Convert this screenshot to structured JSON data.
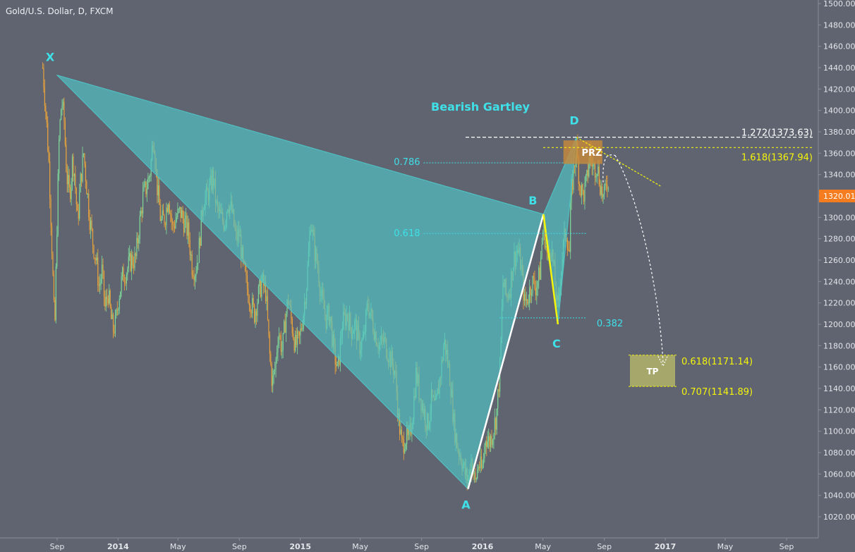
{
  "chart_title": "Gold/U.S. Dollar, D, FXCM",
  "chart_data": {
    "type": "candlestick",
    "title": "Gold/U.S. Dollar, D, FXCM",
    "symbol": "Gold/U.S. Dollar",
    "interval": "D",
    "source": "FXCM",
    "ylim": [
      1010,
      1500
    ],
    "y_ticks": [
      1020,
      1040,
      1060,
      1080,
      1100,
      1120,
      1140,
      1160,
      1180,
      1200,
      1220,
      1240,
      1260,
      1280,
      1300,
      1320,
      1340,
      1360,
      1380,
      1400,
      1420,
      1440,
      1460,
      1480,
      1500
    ],
    "y_tick_labels": [
      "1020.00",
      "1040.00",
      "1060.00",
      "1080.00",
      "1100.00",
      "1120.00",
      "1140.00",
      "1160.00",
      "1180.00",
      "1200.00",
      "1220.00",
      "1240.00",
      "1260.00",
      "1280.00",
      "1300.00",
      "1320.00",
      "1340.00",
      "1360.00",
      "1380.00",
      "1400.00",
      "1420.00",
      "1440.00",
      "1460.00",
      "1480.00",
      "1500.00"
    ],
    "x_range": [
      "2013-08-01",
      "2017-10-01"
    ],
    "x_ticks": [
      {
        "label": "Sep",
        "date": "2013-09-01"
      },
      {
        "label": "2014",
        "date": "2014-01-01"
      },
      {
        "label": "May",
        "date": "2014-05-01"
      },
      {
        "label": "Sep",
        "date": "2014-09-01"
      },
      {
        "label": "2015",
        "date": "2015-01-01"
      },
      {
        "label": "May",
        "date": "2015-05-01"
      },
      {
        "label": "Sep",
        "date": "2015-09-01"
      },
      {
        "label": "2016",
        "date": "2016-01-01"
      },
      {
        "label": "May",
        "date": "2016-05-01"
      },
      {
        "label": "Sep",
        "date": "2016-09-01"
      },
      {
        "label": "2017",
        "date": "2017-01-01"
      },
      {
        "label": "May",
        "date": "2017-05-01"
      },
      {
        "label": "Sep",
        "date": "2017-09-01"
      }
    ],
    "current_price": {
      "label": "1320.01",
      "value": 1320.01
    },
    "price_path": [
      {
        "date": "2013-08-03",
        "value": 1440
      },
      {
        "date": "2013-08-10",
        "value": 1395
      },
      {
        "date": "2013-08-16",
        "value": 1345
      },
      {
        "date": "2013-08-22",
        "value": 1265
      },
      {
        "date": "2013-08-27",
        "value": 1190
      },
      {
        "date": "2013-09-01",
        "value": 1300
      },
      {
        "date": "2013-09-05",
        "value": 1375
      },
      {
        "date": "2013-09-10",
        "value": 1410
      },
      {
        "date": "2013-09-15",
        "value": 1390
      },
      {
        "date": "2013-09-20",
        "value": 1340
      },
      {
        "date": "2013-09-26",
        "value": 1320
      },
      {
        "date": "2013-10-02",
        "value": 1355
      },
      {
        "date": "2013-10-06",
        "value": 1340
      },
      {
        "date": "2013-10-12",
        "value": 1295
      },
      {
        "date": "2013-10-18",
        "value": 1335
      },
      {
        "date": "2013-10-24",
        "value": 1360
      },
      {
        "date": "2013-10-30",
        "value": 1330
      },
      {
        "date": "2013-11-05",
        "value": 1300
      },
      {
        "date": "2013-11-12",
        "value": 1275
      },
      {
        "date": "2013-11-18",
        "value": 1260
      },
      {
        "date": "2013-11-24",
        "value": 1235
      },
      {
        "date": "2013-11-30",
        "value": 1250
      },
      {
        "date": "2013-12-06",
        "value": 1215
      },
      {
        "date": "2013-12-12",
        "value": 1230
      },
      {
        "date": "2013-12-18",
        "value": 1205
      },
      {
        "date": "2013-12-22",
        "value": 1195
      },
      {
        "date": "2013-12-27",
        "value": 1200
      },
      {
        "date": "2014-01-02",
        "value": 1225
      },
      {
        "date": "2014-01-10",
        "value": 1245
      },
      {
        "date": "2014-01-18",
        "value": 1250
      },
      {
        "date": "2014-01-27",
        "value": 1260
      },
      {
        "date": "2014-02-05",
        "value": 1260
      },
      {
        "date": "2014-02-12",
        "value": 1290
      },
      {
        "date": "2014-02-20",
        "value": 1320
      },
      {
        "date": "2014-02-28",
        "value": 1330
      },
      {
        "date": "2014-03-07",
        "value": 1345
      },
      {
        "date": "2014-03-13",
        "value": 1380
      },
      {
        "date": "2014-03-20",
        "value": 1330
      },
      {
        "date": "2014-03-28",
        "value": 1295
      },
      {
        "date": "2014-04-05",
        "value": 1300
      },
      {
        "date": "2014-04-12",
        "value": 1320
      },
      {
        "date": "2014-04-20",
        "value": 1290
      },
      {
        "date": "2014-04-28",
        "value": 1300
      },
      {
        "date": "2014-05-06",
        "value": 1305
      },
      {
        "date": "2014-05-14",
        "value": 1295
      },
      {
        "date": "2014-05-22",
        "value": 1285
      },
      {
        "date": "2014-05-29",
        "value": 1255
      },
      {
        "date": "2014-06-05",
        "value": 1250
      },
      {
        "date": "2014-06-12",
        "value": 1270
      },
      {
        "date": "2014-06-20",
        "value": 1315
      },
      {
        "date": "2014-06-28",
        "value": 1320
      },
      {
        "date": "2014-07-06",
        "value": 1330
      },
      {
        "date": "2014-07-10",
        "value": 1340
      },
      {
        "date": "2014-07-17",
        "value": 1310
      },
      {
        "date": "2014-07-25",
        "value": 1300
      },
      {
        "date": "2014-08-02",
        "value": 1295
      },
      {
        "date": "2014-08-09",
        "value": 1315
      },
      {
        "date": "2014-08-17",
        "value": 1305
      },
      {
        "date": "2014-08-25",
        "value": 1280
      },
      {
        "date": "2014-09-01",
        "value": 1285
      },
      {
        "date": "2014-09-08",
        "value": 1255
      },
      {
        "date": "2014-09-16",
        "value": 1235
      },
      {
        "date": "2014-09-24",
        "value": 1220
      },
      {
        "date": "2014-10-01",
        "value": 1210
      },
      {
        "date": "2014-10-08",
        "value": 1225
      },
      {
        "date": "2014-10-16",
        "value": 1240
      },
      {
        "date": "2014-10-24",
        "value": 1230
      },
      {
        "date": "2014-10-31",
        "value": 1175
      },
      {
        "date": "2014-11-06",
        "value": 1145
      },
      {
        "date": "2014-11-12",
        "value": 1160
      },
      {
        "date": "2014-11-18",
        "value": 1195
      },
      {
        "date": "2014-11-26",
        "value": 1175
      },
      {
        "date": "2014-12-02",
        "value": 1205
      },
      {
        "date": "2014-12-08",
        "value": 1225
      },
      {
        "date": "2014-12-15",
        "value": 1200
      },
      {
        "date": "2014-12-22",
        "value": 1180
      },
      {
        "date": "2014-12-30",
        "value": 1185
      },
      {
        "date": "2015-01-07",
        "value": 1210
      },
      {
        "date": "2015-01-14",
        "value": 1240
      },
      {
        "date": "2015-01-19",
        "value": 1275
      },
      {
        "date": "2015-01-22",
        "value": 1300
      },
      {
        "date": "2015-01-29",
        "value": 1270
      },
      {
        "date": "2015-02-05",
        "value": 1255
      },
      {
        "date": "2015-02-12",
        "value": 1225
      },
      {
        "date": "2015-02-22",
        "value": 1205
      },
      {
        "date": "2015-03-01",
        "value": 1210
      },
      {
        "date": "2015-03-09",
        "value": 1175
      },
      {
        "date": "2015-03-17",
        "value": 1155
      },
      {
        "date": "2015-03-26",
        "value": 1200
      },
      {
        "date": "2015-04-05",
        "value": 1210
      },
      {
        "date": "2015-04-13",
        "value": 1195
      },
      {
        "date": "2015-04-21",
        "value": 1200
      },
      {
        "date": "2015-04-30",
        "value": 1180
      },
      {
        "date": "2015-05-08",
        "value": 1185
      },
      {
        "date": "2015-05-16",
        "value": 1220
      },
      {
        "date": "2015-05-24",
        "value": 1205
      },
      {
        "date": "2015-06-01",
        "value": 1190
      },
      {
        "date": "2015-06-09",
        "value": 1180
      },
      {
        "date": "2015-06-17",
        "value": 1185
      },
      {
        "date": "2015-06-25",
        "value": 1175
      },
      {
        "date": "2015-07-03",
        "value": 1165
      },
      {
        "date": "2015-07-10",
        "value": 1155
      },
      {
        "date": "2015-07-17",
        "value": 1110
      },
      {
        "date": "2015-07-24",
        "value": 1085
      },
      {
        "date": "2015-07-30",
        "value": 1095
      },
      {
        "date": "2015-08-06",
        "value": 1090
      },
      {
        "date": "2015-08-14",
        "value": 1115
      },
      {
        "date": "2015-08-21",
        "value": 1155
      },
      {
        "date": "2015-08-28",
        "value": 1135
      },
      {
        "date": "2015-09-05",
        "value": 1120
      },
      {
        "date": "2015-09-13",
        "value": 1105
      },
      {
        "date": "2015-09-21",
        "value": 1130
      },
      {
        "date": "2015-09-29",
        "value": 1120
      },
      {
        "date": "2015-10-06",
        "value": 1145
      },
      {
        "date": "2015-10-12",
        "value": 1165
      },
      {
        "date": "2015-10-16",
        "value": 1185
      },
      {
        "date": "2015-10-22",
        "value": 1170
      },
      {
        "date": "2015-10-29",
        "value": 1145
      },
      {
        "date": "2015-11-05",
        "value": 1105
      },
      {
        "date": "2015-11-12",
        "value": 1085
      },
      {
        "date": "2015-11-20",
        "value": 1075
      },
      {
        "date": "2015-11-27",
        "value": 1060
      },
      {
        "date": "2015-12-03",
        "value": 1055
      },
      {
        "date": "2015-12-10",
        "value": 1075
      },
      {
        "date": "2015-12-17",
        "value": 1050
      },
      {
        "date": "2015-12-24",
        "value": 1070
      },
      {
        "date": "2015-12-31",
        "value": 1062
      },
      {
        "date": "2016-01-07",
        "value": 1095
      },
      {
        "date": "2016-01-15",
        "value": 1090
      },
      {
        "date": "2016-01-22",
        "value": 1100
      },
      {
        "date": "2016-01-29",
        "value": 1115
      },
      {
        "date": "2016-02-05",
        "value": 1160
      },
      {
        "date": "2016-02-11",
        "value": 1240
      },
      {
        "date": "2016-02-18",
        "value": 1225
      },
      {
        "date": "2016-02-25",
        "value": 1235
      },
      {
        "date": "2016-03-03",
        "value": 1260
      },
      {
        "date": "2016-03-11",
        "value": 1270
      },
      {
        "date": "2016-03-18",
        "value": 1255
      },
      {
        "date": "2016-03-25",
        "value": 1220
      },
      {
        "date": "2016-04-01",
        "value": 1225
      },
      {
        "date": "2016-04-09",
        "value": 1240
      },
      {
        "date": "2016-04-16",
        "value": 1235
      },
      {
        "date": "2016-04-24",
        "value": 1245
      },
      {
        "date": "2016-05-02",
        "value": 1295
      },
      {
        "date": "2016-05-09",
        "value": 1265
      },
      {
        "date": "2016-05-17",
        "value": 1275
      },
      {
        "date": "2016-05-24",
        "value": 1245
      },
      {
        "date": "2016-05-31",
        "value": 1210
      },
      {
        "date": "2016-06-04",
        "value": 1240
      },
      {
        "date": "2016-06-10",
        "value": 1270
      },
      {
        "date": "2016-06-16",
        "value": 1290
      },
      {
        "date": "2016-06-23",
        "value": 1265
      },
      {
        "date": "2016-06-26",
        "value": 1320
      },
      {
        "date": "2016-07-03",
        "value": 1350
      },
      {
        "date": "2016-07-07",
        "value": 1365
      },
      {
        "date": "2016-07-14",
        "value": 1330
      },
      {
        "date": "2016-07-21",
        "value": 1320
      },
      {
        "date": "2016-07-28",
        "value": 1335
      },
      {
        "date": "2016-08-03",
        "value": 1360
      },
      {
        "date": "2016-08-10",
        "value": 1345
      },
      {
        "date": "2016-08-17",
        "value": 1350
      },
      {
        "date": "2016-08-24",
        "value": 1330
      },
      {
        "date": "2016-08-31",
        "value": 1315
      },
      {
        "date": "2016-09-06",
        "value": 1340
      },
      {
        "date": "2016-09-10",
        "value": 1320
      }
    ],
    "harmonic_pattern": {
      "name": "Bearish Gartley",
      "points": [
        {
          "label": "X",
          "date": "2013-09-01",
          "value": 1433
        },
        {
          "label": "A",
          "date": "2015-12-03",
          "value": 1046
        },
        {
          "label": "B",
          "date": "2016-05-02",
          "value": 1303
        },
        {
          "label": "C",
          "date": "2016-05-31",
          "value": 1200
        },
        {
          "label": "D",
          "date": "2016-07-07",
          "value": 1375
        }
      ]
    },
    "retracement_lines": [
      {
        "label": "0.786",
        "value": 1351,
        "from": "2015-09-05",
        "to": "2016-08-10"
      },
      {
        "label": "0.618",
        "value": 1285,
        "from": "2015-09-05",
        "to": "2016-07-28"
      },
      {
        "label": "0.382",
        "value": 1206,
        "from": "2016-02-04",
        "to": "2016-07-28"
      }
    ],
    "extension_lines": [
      {
        "label": "1.272(1373.63)",
        "value": 1373.63,
        "color": "#ffffff"
      },
      {
        "label": "1.618(1367.94)",
        "value": 1367.94,
        "color": "#f5f50a"
      }
    ],
    "prz": {
      "label": "PRZ",
      "top": 1372,
      "bottom": 1350,
      "from": "2016-06-11",
      "to": "2016-08-28"
    },
    "take_profit": {
      "label": "TP",
      "levels": [
        {
          "label": "0.618(1171.14)",
          "value": 1171.14
        },
        {
          "label": "0.707(1141.89)",
          "value": 1141.89
        }
      ]
    }
  },
  "colors": {
    "background": "#5f6470",
    "pattern_fill": "#4fc6c8",
    "cyan_text": "#3fe0e8",
    "white_line": "#ffffff",
    "yellow": "#f5f50a",
    "prz_fill": "#c98a3a",
    "tp_fill": "#b7b86a",
    "price_badge": "#f57c1f",
    "candle_up": "#7ed89a",
    "candle_down": "#e8a23c",
    "axis_text": "#e4e6ea"
  }
}
